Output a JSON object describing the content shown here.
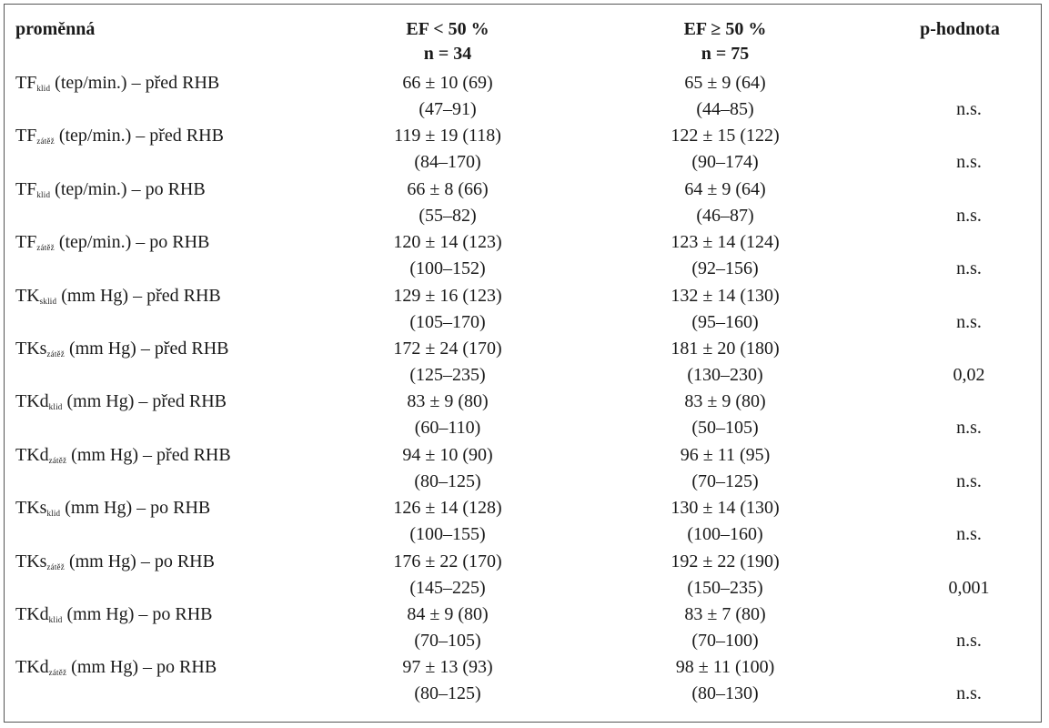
{
  "header": {
    "variable": "proměnná",
    "group1_title": "EF < 50 %",
    "group1_n": "n = 34",
    "group2_title": "EF ≥ 50 %",
    "group2_n": "n = 75",
    "pvalue": "p-hodnota"
  },
  "rows": [
    {
      "base": "TF",
      "sub": "klid",
      "rest": " (tep/min.) – před RHB",
      "g1_mean": "66 ± 10 (69)",
      "g1_range": "(47–91)",
      "g2_mean": "65 ± 9 (64)",
      "g2_range": "(44–85)",
      "p": "n.s."
    },
    {
      "base": "TF",
      "sub": "zátěž",
      "rest": " (tep/min.) – před RHB",
      "g1_mean": "119 ± 19 (118)",
      "g1_range": "(84–170)",
      "g2_mean": "122 ± 15 (122)",
      "g2_range": "(90–174)",
      "p": "n.s."
    },
    {
      "base": "TF",
      "sub": "klid",
      "rest": " (tep/min.) – po RHB",
      "g1_mean": "66 ± 8 (66)",
      "g1_range": "(55–82)",
      "g2_mean": "64 ± 9 (64)",
      "g2_range": "(46–87)",
      "p": "n.s."
    },
    {
      "base": "TF",
      "sub": "zátěž",
      "rest": " (tep/min.) – po RHB",
      "g1_mean": "120 ± 14 (123)",
      "g1_range": "(100–152)",
      "g2_mean": "123 ± 14 (124)",
      "g2_range": "(92–156)",
      "p": "n.s."
    },
    {
      "base": "TK",
      "sub": "sklid",
      "rest": " (mm Hg) – před RHB",
      "g1_mean": "129 ± 16 (123)",
      "g1_range": "(105–170)",
      "g2_mean": "132 ± 14 (130)",
      "g2_range": "(95–160)",
      "p": "n.s."
    },
    {
      "base": "TKs",
      "sub": "zátěž",
      "rest": " (mm Hg) – před RHB",
      "g1_mean": "172 ± 24 (170)",
      "g1_range": "(125–235)",
      "g2_mean": "181 ± 20 (180)",
      "g2_range": "(130–230)",
      "p": "0,02"
    },
    {
      "base": "TKd",
      "sub": "klid",
      "rest": " (mm Hg) – před RHB",
      "g1_mean": "83 ± 9 (80)",
      "g1_range": "(60–110)",
      "g2_mean": "83 ± 9 (80)",
      "g2_range": "(50–105)",
      "p": "n.s."
    },
    {
      "base": "TKd",
      "sub": "zátěž",
      "rest": " (mm Hg) – před RHB",
      "g1_mean": "94 ± 10 (90)",
      "g1_range": "(80–125)",
      "g2_mean": "96 ± 11 (95)",
      "g2_range": "(70–125)",
      "p": "n.s."
    },
    {
      "base": "TKs",
      "sub": "klid",
      "rest": " (mm Hg) – po RHB",
      "g1_mean": "126 ± 14 (128)",
      "g1_range": "(100–155)",
      "g2_mean": "130 ± 14 (130)",
      "g2_range": "(100–160)",
      "p": "n.s."
    },
    {
      "base": "TKs",
      "sub": "zátěž",
      "rest": " (mm Hg) – po RHB",
      "g1_mean": "176 ± 22 (170)",
      "g1_range": "(145–225)",
      "g2_mean": "192 ± 22 (190)",
      "g2_range": "(150–235)",
      "p": "0,001"
    },
    {
      "base": "TKd",
      "sub": "klid",
      "rest": " (mm Hg) – po RHB",
      "g1_mean": "84 ± 9 (80)",
      "g1_range": "(70–105)",
      "g2_mean": "83 ± 7 (80)",
      "g2_range": "(70–100)",
      "p": "n.s."
    },
    {
      "base": "TKd",
      "sub": "zátěž",
      "rest": " (mm Hg) – po RHB",
      "g1_mean": "97 ± 13 (93)",
      "g1_range": "(80–125)",
      "g2_mean": "98 ± 11 (100)",
      "g2_range": "(80–130)",
      "p": "n.s."
    }
  ]
}
